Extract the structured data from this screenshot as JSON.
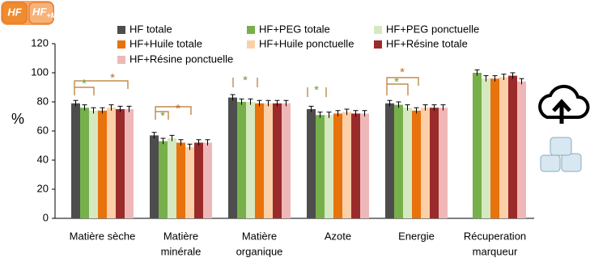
{
  "tags": [
    {
      "base": "HF"
    },
    {
      "base": "HF",
      "sub": "+M"
    }
  ],
  "chart_data": {
    "type": "bar",
    "ylabel": "%",
    "categories": [
      [
        "Matière sèche"
      ],
      [
        "Matière",
        "minérale"
      ],
      [
        "Matière",
        "organique"
      ],
      [
        "Azote"
      ],
      [
        "Energie"
      ],
      [
        "Récuperation",
        "marqueur"
      ]
    ],
    "series": [
      {
        "name": "HF totale",
        "color": "#4d4d4d",
        "values": [
          79,
          57,
          83,
          75,
          79,
          null
        ],
        "errors": [
          2,
          2,
          2,
          2,
          2,
          null
        ]
      },
      {
        "name": "HF+PEG totale",
        "color": "#77b04a",
        "values": [
          76,
          53,
          80,
          71,
          78,
          100
        ],
        "errors": [
          2,
          2,
          2,
          2,
          2,
          2
        ]
      },
      {
        "name": "HF+PEG ponctuelle",
        "color": "#d6e8c0",
        "values": [
          74,
          55,
          80,
          71,
          76,
          96
        ],
        "errors": [
          2,
          2,
          2,
          2,
          2,
          2
        ]
      },
      {
        "name": "HF+Huile totale",
        "color": "#e8720c",
        "values": [
          74,
          52,
          79,
          72,
          74,
          96
        ],
        "errors": [
          2,
          2,
          2,
          2,
          2,
          2
        ]
      },
      {
        "name": "HF+Huile ponctuelle",
        "color": "#fbd0a8",
        "values": [
          76,
          49,
          79,
          73,
          76,
          97
        ],
        "errors": [
          2,
          2,
          2,
          2,
          2,
          2
        ]
      },
      {
        "name": "HF+Résine totale",
        "color": "#9b2a2a",
        "values": [
          75,
          52,
          79,
          72,
          76,
          98
        ],
        "errors": [
          2,
          2,
          2,
          2,
          2,
          2
        ]
      },
      {
        "name": "HF+Résine ponctuelle",
        "color": "#efb8b8",
        "values": [
          75,
          52,
          79,
          72,
          76,
          94
        ],
        "errors": [
          2,
          2,
          2,
          2,
          2,
          2
        ]
      }
    ],
    "annotations": [
      "*",
      "*",
      "*",
      "*",
      "*",
      "*",
      "*",
      "*"
    ],
    "ylim": [
      0,
      120
    ],
    "yticks": [
      0,
      20,
      40,
      60,
      80,
      100,
      120
    ]
  }
}
